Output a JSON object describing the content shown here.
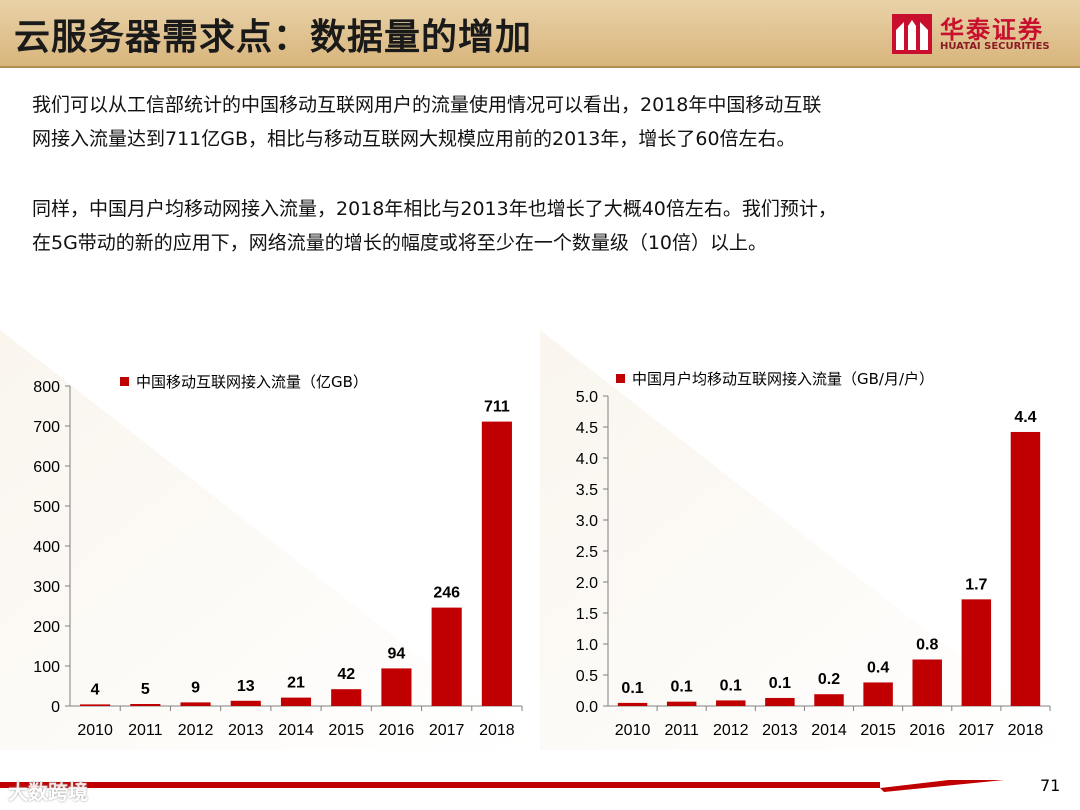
{
  "header": {
    "title": "云服务器需求点：数据量的增加"
  },
  "logo": {
    "name_cn": "华泰证券",
    "name_en": "HUATAI SECURITIES"
  },
  "paragraphs": {
    "p1_line1": "我们可以从工信部统计的中国移动互联网用户的流量使用情况可以看出，2018年中国移动互联",
    "p1_line2": "网接入流量达到711亿GB，相比与移动互联网大规模应用前的2013年，增长了60倍左右。",
    "p2_line1": "同样，中国月户均移动网接入流量，2018年相比与2013年也增长了大概40倍左右。我们预计，",
    "p2_line2": "在5G带动的新的应用下，网络流量的增长的幅度或将至少在一个数量级（10倍）以上。"
  },
  "chart_data": [
    {
      "type": "bar",
      "title": "",
      "legend": "中国移动互联网接入流量（亿GB）",
      "categories": [
        "2010",
        "2011",
        "2012",
        "2013",
        "2014",
        "2015",
        "2016",
        "2017",
        "2018"
      ],
      "values": [
        4,
        5,
        9,
        13,
        21,
        42,
        94,
        246,
        711
      ],
      "labels": [
        "4",
        "5",
        "9",
        "13",
        "21",
        "42",
        "94",
        "246",
        "711"
      ],
      "ylim": [
        0,
        800
      ],
      "yticks": [
        "0",
        "100",
        "200",
        "300",
        "400",
        "500",
        "600",
        "700",
        "800"
      ],
      "color": "#c00000",
      "grid": false,
      "legend_position": "top"
    },
    {
      "type": "bar",
      "title": "",
      "legend": "中国月户均移动互联网接入流量（GB/月/户）",
      "categories": [
        "2010",
        "2011",
        "2012",
        "2013",
        "2014",
        "2015",
        "2016",
        "2017",
        "2018"
      ],
      "values": [
        0.05,
        0.07,
        0.09,
        0.13,
        0.19,
        0.38,
        0.75,
        1.72,
        4.42
      ],
      "labels": [
        "0.1",
        "0.1",
        "0.1",
        "0.1",
        "0.2",
        "0.4",
        "0.8",
        "1.7",
        "4.4"
      ],
      "ylim": [
        0,
        5
      ],
      "yticks": [
        "0.0",
        "0.5",
        "1.0",
        "1.5",
        "2.0",
        "2.5",
        "3.0",
        "3.5",
        "4.0",
        "4.5",
        "5.0"
      ],
      "color": "#c00000",
      "grid": false,
      "legend_position": "top"
    }
  ],
  "footer": {
    "page_number": "71",
    "watermark": "大数跨境"
  },
  "colors": {
    "accent": "#c00000",
    "header_bg": "#dcbc86",
    "brand": "#c8102e"
  }
}
